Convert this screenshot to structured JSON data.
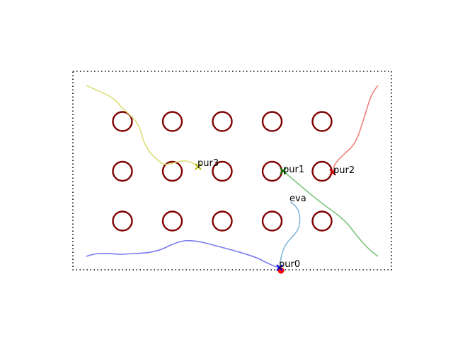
{
  "arena": {
    "border_color": "#000000",
    "obstacle_color": "#800000",
    "obstacle_rows": 3,
    "obstacle_cols": 5
  },
  "agents": [
    {
      "id": "pur0",
      "label": "pur0",
      "color": "#0000dd",
      "trail_color": "#7b7bf0",
      "marker": "x"
    },
    {
      "id": "pur1",
      "label": "pur1",
      "color": "#008000",
      "trail_color": "#7cc47c",
      "marker": "x"
    },
    {
      "id": "pur2",
      "label": "pur2",
      "color": "#cc0000",
      "trail_color": "#f08080",
      "marker": "x"
    },
    {
      "id": "pur3",
      "label": "pur3",
      "color": "#b5b500",
      "trail_color": "#dede7a",
      "marker": "x"
    },
    {
      "id": "eva",
      "label": "eva",
      "color": "#ff0000",
      "trail_color": "#86b8d8",
      "marker": "dot"
    }
  ]
}
